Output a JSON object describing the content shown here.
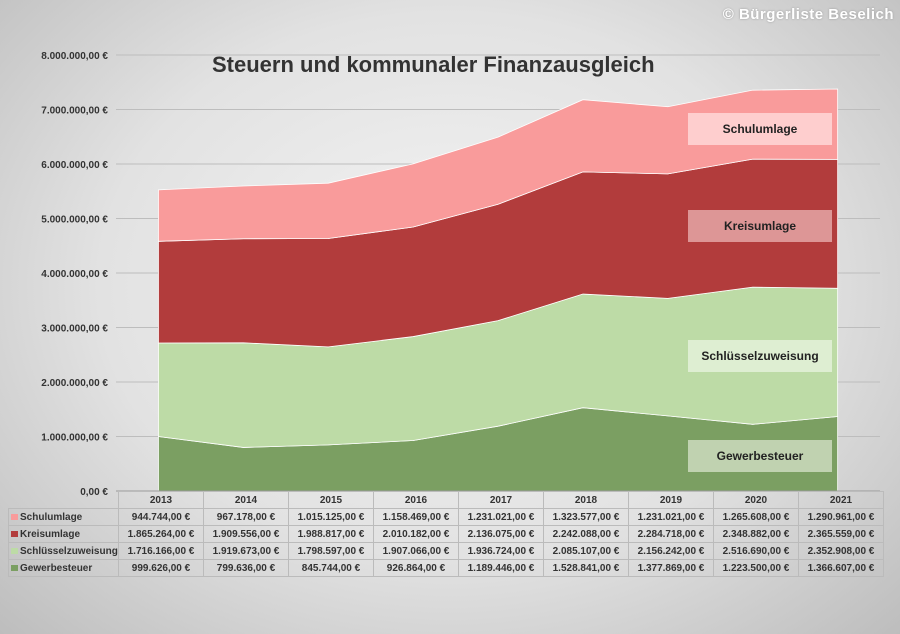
{
  "copyright": "© Bürgerliste Beselich",
  "chart_data": {
    "type": "area",
    "stacked": true,
    "title": "Steuern und kommunaler Finanzausgleich",
    "categories": [
      "2013",
      "2014",
      "2015",
      "2016",
      "2017",
      "2018",
      "2019",
      "2020",
      "2021"
    ],
    "ylim": [
      0,
      8000000
    ],
    "yticks": [
      "0,00 €",
      "1.000.000,00 €",
      "2.000.000,00 €",
      "3.000.000,00 €",
      "4.000.000,00 €",
      "5.000.000,00 €",
      "6.000.000,00 €",
      "7.000.000,00 €",
      "8.000.000,00 €"
    ],
    "grid": true,
    "series": [
      {
        "name": "Gewerbesteuer",
        "color": "#7b9f62",
        "values": [
          999626,
          799636,
          845744,
          926864,
          1189446,
          1528841,
          1377869,
          1223500,
          1366607
        ],
        "display": [
          "999.626,00 €",
          "799.636,00 €",
          "845.744,00 €",
          "926.864,00 €",
          "1.189.446,00 €",
          "1.528.841,00 €",
          "1.377.869,00 €",
          "1.223.500,00 €",
          "1.366.607,00 €"
        ]
      },
      {
        "name": "Schlüsselzuweisung",
        "color": "#bddba6",
        "values": [
          1716166,
          1919673,
          1798597,
          1907066,
          1936724,
          2085107,
          2156242,
          2516690,
          2352908
        ],
        "display": [
          "1.716.166,00 €",
          "1.919.673,00 €",
          "1.798.597,00 €",
          "1.907.066,00 €",
          "1.936.724,00 €",
          "2.085.107,00 €",
          "2.156.242,00 €",
          "2.516.690,00 €",
          "2.352.908,00 €"
        ]
      },
      {
        "name": "Kreisumlage",
        "color": "#b23c3c",
        "values": [
          1865264,
          1909556,
          1988817,
          2010182,
          2136075,
          2242088,
          2284718,
          2348882,
          2365559
        ],
        "display": [
          "1.865.264,00 €",
          "1.909.556,00 €",
          "1.988.817,00 €",
          "2.010.182,00 €",
          "2.136.075,00 €",
          "2.242.088,00 €",
          "2.284.718,00 €",
          "2.348.882,00 €",
          "2.365.559,00 €"
        ]
      },
      {
        "name": "Schulumlage",
        "color": "#f99b9b",
        "values": [
          944744,
          967178,
          1015125,
          1158469,
          1231021,
          1323577,
          1231021,
          1265608,
          1290961
        ],
        "display": [
          "944.744,00 €",
          "967.178,00 €",
          "1.015.125,00 €",
          "1.158.469,00 €",
          "1.231.021,00 €",
          "1.323.577,00 €",
          "1.231.021,00 €",
          "1.265.608,00 €",
          "1.290.961,00 €"
        ]
      }
    ],
    "annotations": [
      "Schulumlage",
      "Kreisumlage",
      "Schlüsselzuweisung",
      "Gewerbesteuer"
    ]
  }
}
